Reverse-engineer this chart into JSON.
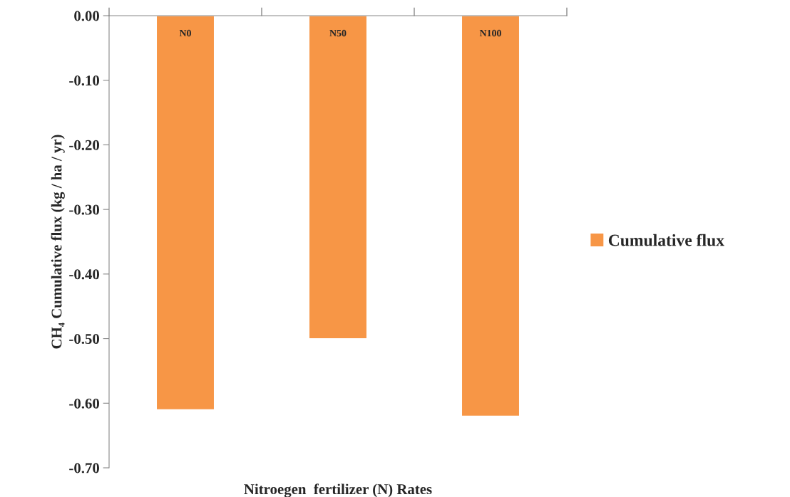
{
  "chart_data": {
    "type": "bar",
    "xlabel": "Nitroegen  fertilizer (N) Rates",
    "ylabel": "CH₄ Cumulative flux (kg / ha / yr)",
    "categories": [
      "N0",
      "N50",
      "N100"
    ],
    "series": [
      {
        "name": "Cumulative flux",
        "color": "#f79646",
        "values": [
          -0.61,
          -0.5,
          -0.62
        ]
      }
    ],
    "ylim": [
      -0.7,
      0.0
    ],
    "yticks": [
      {
        "value": 0.0,
        "label": "0.00"
      },
      {
        "value": -0.1,
        "label": "-0.10"
      },
      {
        "value": -0.2,
        "label": "-0.20"
      },
      {
        "value": -0.3,
        "label": "-0.30"
      },
      {
        "value": -0.4,
        "label": "-0.40"
      },
      {
        "value": -0.5,
        "label": "-0.50"
      },
      {
        "value": -0.6,
        "label": "-0.60"
      },
      {
        "value": -0.7,
        "label": "-0.70"
      }
    ],
    "grid": false,
    "legend": "right"
  }
}
